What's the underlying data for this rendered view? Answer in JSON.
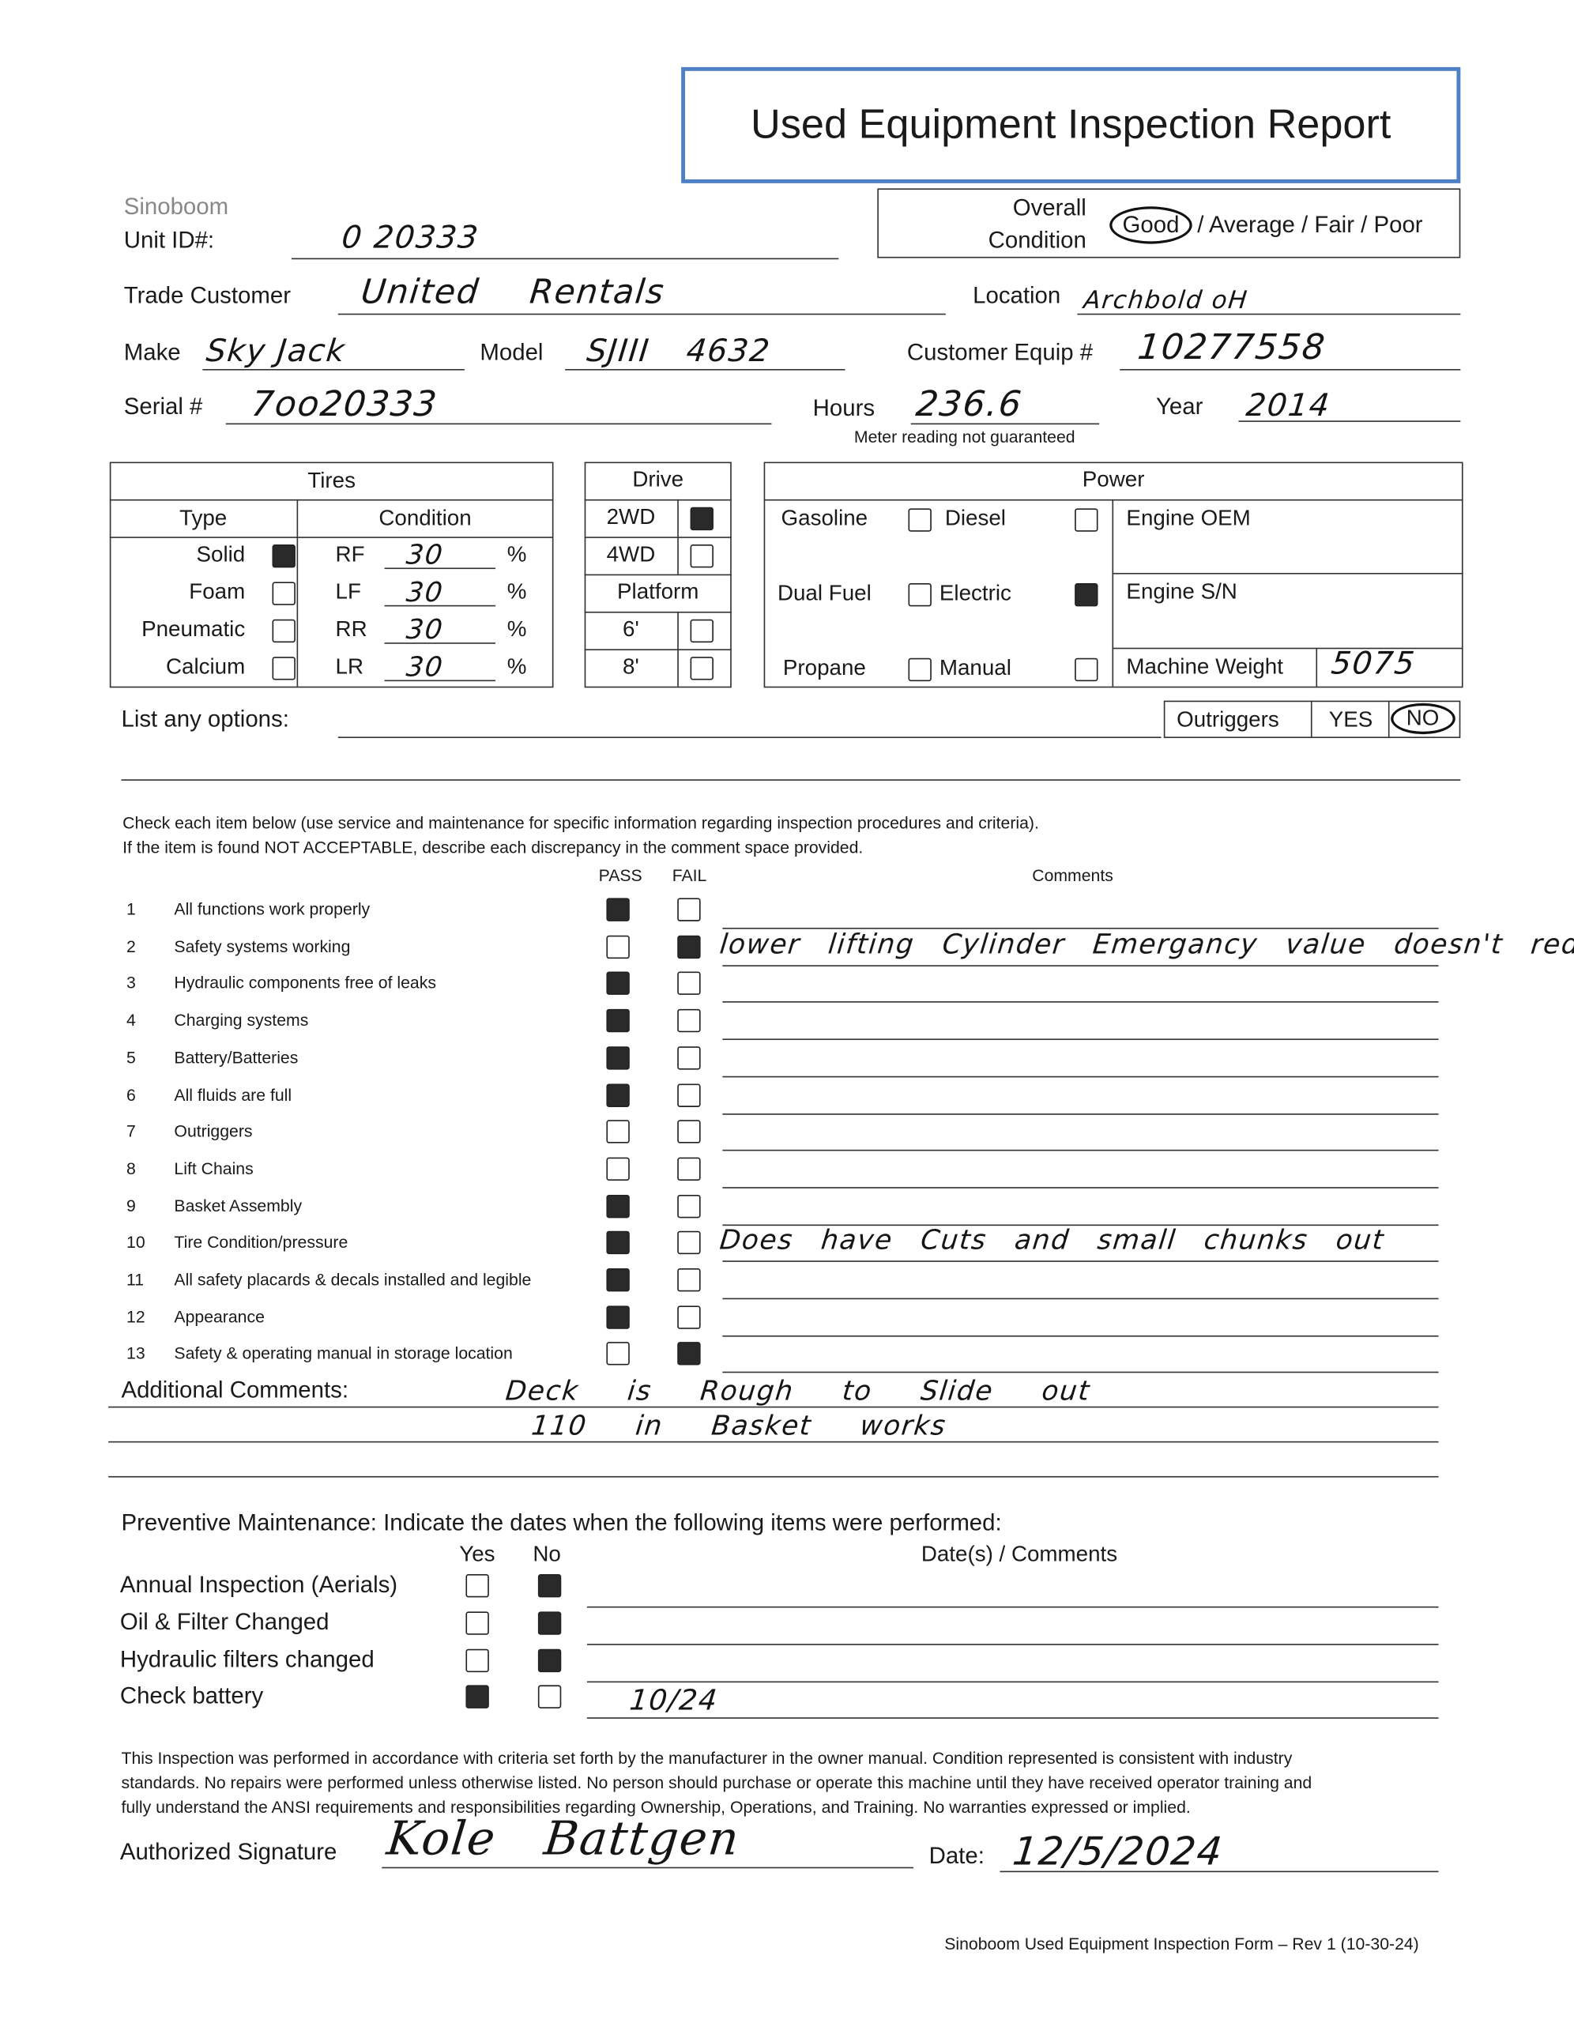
{
  "title": "Used Equipment Inspection Report",
  "colors": {
    "title_border": "#4f7fc4",
    "ink": "#1a1a1a"
  },
  "header": {
    "brand": "Sinoboom",
    "unit_id_label": "Unit ID#:",
    "unit_id": "0 20333",
    "overall_label_1": "Overall",
    "overall_label_2": "Condition",
    "condition_options": [
      "Good",
      "/ Average / Fair / Poor"
    ],
    "condition_selected": "Good",
    "trade_customer_label": "Trade Customer",
    "trade_customer": "United Rentals",
    "location_label": "Location",
    "location": "Archbold oH",
    "make_label": "Make",
    "make": "Sky Jack",
    "model_label": "Model",
    "model": "SJIII 4632",
    "customer_equip_label": "Customer Equip #",
    "customer_equip": "10277558",
    "serial_label": "Serial #",
    "serial": "7oo20333",
    "hours_label": "Hours",
    "hours": "236.6",
    "meter_note": "Meter reading not guaranteed",
    "year_label": "Year",
    "year": "2014"
  },
  "tires": {
    "title": "Tires",
    "type_header": "Type",
    "condition_header": "Condition",
    "types": [
      {
        "label": "Solid",
        "checked": true
      },
      {
        "label": "Foam",
        "checked": false
      },
      {
        "label": "Pneumatic",
        "checked": false
      },
      {
        "label": "Calcium",
        "checked": false
      }
    ],
    "conditions": [
      {
        "pos": "RF",
        "value": "30",
        "unit": "%"
      },
      {
        "pos": "LF",
        "value": "30",
        "unit": "%"
      },
      {
        "pos": "RR",
        "value": "30",
        "unit": "%"
      },
      {
        "pos": "LR",
        "value": "30",
        "unit": "%"
      }
    ]
  },
  "drive": {
    "title": "Drive",
    "options": [
      {
        "label": "2WD",
        "checked": true
      },
      {
        "label": "4WD",
        "checked": false
      }
    ],
    "platform_title": "Platform",
    "platform": [
      {
        "label": "6'",
        "checked": false
      },
      {
        "label": "8'",
        "checked": false
      }
    ]
  },
  "power": {
    "title": "Power",
    "options": [
      {
        "label": "Gasoline",
        "checked": false
      },
      {
        "label": "Diesel",
        "checked": false
      },
      {
        "label": "Dual Fuel",
        "checked": false
      },
      {
        "label": "Electric",
        "checked": true
      },
      {
        "label": "Propane",
        "checked": false
      },
      {
        "label": "Manual",
        "checked": false
      }
    ],
    "engine_oem_label": "Engine OEM",
    "engine_sn_label": "Engine S/N",
    "machine_weight_label": "Machine Weight",
    "machine_weight": "5075"
  },
  "options": {
    "label": "List any options:",
    "outriggers_label": "Outriggers",
    "yes": "YES",
    "no": "NO",
    "selected": "NO"
  },
  "instructions": [
    "Check each item below (use service and maintenance for specific information regarding inspection procedures and criteria).",
    "If the item is found NOT ACCEPTABLE, describe each discrepancy in the comment space provided."
  ],
  "checklist": {
    "pass_header": "PASS",
    "fail_header": "FAIL",
    "comments_header": "Comments",
    "items": [
      {
        "num": "1",
        "label": "All functions work properly",
        "result": "pass",
        "comment": ""
      },
      {
        "num": "2",
        "label": "Safety systems working",
        "result": "fail",
        "comment": "lower lifting Cylinder Emergancy value doesn't redlease"
      },
      {
        "num": "3",
        "label": "Hydraulic components free of leaks",
        "result": "pass",
        "comment": ""
      },
      {
        "num": "4",
        "label": "Charging systems",
        "result": "pass",
        "comment": ""
      },
      {
        "num": "5",
        "label": "Battery/Batteries",
        "result": "pass",
        "comment": ""
      },
      {
        "num": "6",
        "label": "All fluids are full",
        "result": "pass",
        "comment": ""
      },
      {
        "num": "7",
        "label": "Outriggers",
        "result": "",
        "comment": ""
      },
      {
        "num": "8",
        "label": "Lift Chains",
        "result": "",
        "comment": ""
      },
      {
        "num": "9",
        "label": "Basket Assembly",
        "result": "pass",
        "comment": ""
      },
      {
        "num": "10",
        "label": "Tire Condition/pressure",
        "result": "pass",
        "comment": "Does have Cuts and small chunks out"
      },
      {
        "num": "11",
        "label": "All safety placards & decals installed and legible",
        "result": "pass",
        "comment": ""
      },
      {
        "num": "12",
        "label": "Appearance",
        "result": "pass",
        "comment": ""
      },
      {
        "num": "13",
        "label": "Safety & operating manual in storage location",
        "result": "fail",
        "comment": ""
      }
    ]
  },
  "additional": {
    "label": "Additional Comments:",
    "lines": [
      "Deck is Rough to Slide out",
      "110 in Basket works"
    ]
  },
  "pm": {
    "header": "Preventive Maintenance:  Indicate the dates when the following items were performed:",
    "yes_header": "Yes",
    "no_header": "No",
    "comments_header": "Date(s) / Comments",
    "items": [
      {
        "label": "Annual Inspection (Aerials)",
        "value": "no",
        "comment": ""
      },
      {
        "label": "Oil & Filter Changed",
        "value": "no",
        "comment": ""
      },
      {
        "label": "Hydraulic filters changed",
        "value": "no",
        "comment": ""
      },
      {
        "label": "Check battery",
        "value": "yes",
        "comment": "10/24"
      }
    ]
  },
  "disclaimer": [
    "This Inspection was performed in accordance with criteria set forth by the manufacturer in the owner manual.  Condition represented is consistent with industry",
    "standards.  No repairs were performed unless otherwise listed.  No person should purchase or operate this machine until they have received operator training and",
    "fully understand the ANSI requirements and responsibilities regarding Ownership, Operations, and Training.  No warranties expressed or implied."
  ],
  "signature": {
    "label": "Authorized Signature",
    "signer": "Kole Battgen",
    "date_label": "Date:",
    "date": "12/5/2024"
  },
  "footer": "Sinoboom Used Equipment Inspection Form – Rev 1 (10-30-24)"
}
